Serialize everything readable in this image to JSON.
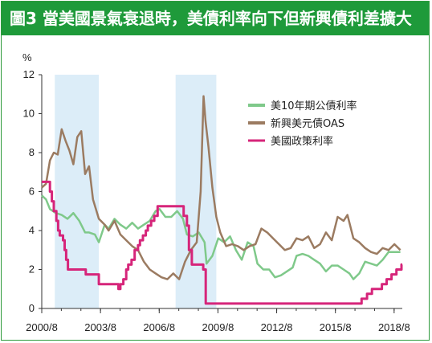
{
  "title": "圖3 當美國景氣衰退時，美債利率向下但新興債利差擴大",
  "chart_data": {
    "type": "line",
    "title": "圖3 當美國景氣衰退時，美債利率向下但新興債利差擴大",
    "ylabel": "%",
    "xlabel": "",
    "ylim": [
      0,
      12
    ],
    "yticks": [
      0,
      2,
      4,
      6,
      8,
      10,
      12
    ],
    "xlim": [
      2000.583,
      2019.0
    ],
    "xtick_labels": [
      "2000/8",
      "2003/8",
      "2006/8",
      "2009/8",
      "2012/8",
      "2015/8",
      "2018/8"
    ],
    "xtick_values": [
      2000.583,
      2003.583,
      2006.583,
      2009.583,
      2012.583,
      2015.583,
      2018.583
    ],
    "grid": false,
    "legend_position": "top-right",
    "recession_shading": [
      [
        2001.25,
        2003.5
      ],
      [
        2007.42,
        2009.5
      ]
    ],
    "series": [
      {
        "name": "美10年期公債利率",
        "color": "#7fc98a",
        "x": [
          2000.583,
          2000.8,
          2001.0,
          2001.3,
          2001.6,
          2001.9,
          2002.2,
          2002.5,
          2002.8,
          2003.0,
          2003.3,
          2003.5,
          2003.8,
          2004.0,
          2004.3,
          2004.6,
          2004.9,
          2005.2,
          2005.5,
          2005.8,
          2006.1,
          2006.4,
          2006.6,
          2006.9,
          2007.2,
          2007.5,
          2007.8,
          2008.0,
          2008.3,
          2008.6,
          2008.9,
          2009.0,
          2009.3,
          2009.6,
          2009.9,
          2010.2,
          2010.5,
          2010.8,
          2011.1,
          2011.4,
          2011.6,
          2011.9,
          2012.2,
          2012.5,
          2012.8,
          2013.1,
          2013.4,
          2013.6,
          2013.9,
          2014.2,
          2014.5,
          2014.8,
          2015.1,
          2015.4,
          2015.7,
          2016.0,
          2016.3,
          2016.5,
          2016.8,
          2017.1,
          2017.4,
          2017.7,
          2018.0,
          2018.3,
          2018.6,
          2018.9
        ],
        "values": [
          5.8,
          5.6,
          5.1,
          4.9,
          4.8,
          4.6,
          4.9,
          4.5,
          3.9,
          3.9,
          3.8,
          3.4,
          4.3,
          4.1,
          4.6,
          4.3,
          4.1,
          4.4,
          4.1,
          4.3,
          4.5,
          5.0,
          5.1,
          4.7,
          4.7,
          5.0,
          4.6,
          3.8,
          3.7,
          3.9,
          3.4,
          2.3,
          2.7,
          3.6,
          3.4,
          3.7,
          3.0,
          2.5,
          3.4,
          3.2,
          2.3,
          2.0,
          2.0,
          1.6,
          1.7,
          1.9,
          2.1,
          2.7,
          2.8,
          2.7,
          2.5,
          2.3,
          1.9,
          2.2,
          2.2,
          2.0,
          1.8,
          1.5,
          1.8,
          2.4,
          2.3,
          2.2,
          2.5,
          2.9,
          2.9,
          2.9
        ]
      },
      {
        "name": "新興美元債OAS",
        "color": "#9b7b61",
        "x": [
          2000.583,
          2000.8,
          2001.0,
          2001.2,
          2001.4,
          2001.6,
          2001.8,
          2002.0,
          2002.2,
          2002.4,
          2002.6,
          2002.8,
          2003.0,
          2003.2,
          2003.5,
          2003.8,
          2004.0,
          2004.3,
          2004.6,
          2004.9,
          2005.2,
          2005.5,
          2005.8,
          2006.1,
          2006.4,
          2006.7,
          2007.0,
          2007.3,
          2007.6,
          2007.9,
          2008.2,
          2008.5,
          2008.7,
          2008.85,
          2008.95,
          2009.1,
          2009.3,
          2009.5,
          2009.7,
          2010.0,
          2010.3,
          2010.6,
          2010.9,
          2011.2,
          2011.5,
          2011.8,
          2012.1,
          2012.4,
          2012.7,
          2013.0,
          2013.3,
          2013.6,
          2013.9,
          2014.2,
          2014.5,
          2014.8,
          2015.1,
          2015.4,
          2015.7,
          2016.0,
          2016.2,
          2016.5,
          2016.8,
          2017.1,
          2017.4,
          2017.7,
          2018.0,
          2018.3,
          2018.6,
          2018.9
        ],
        "values": [
          6.2,
          6.4,
          7.6,
          8.0,
          7.9,
          9.2,
          8.6,
          8.1,
          7.4,
          8.8,
          9.1,
          6.9,
          7.3,
          5.6,
          4.6,
          4.3,
          4.0,
          4.5,
          3.8,
          3.5,
          3.2,
          3.0,
          2.4,
          2.0,
          1.8,
          1.6,
          1.5,
          1.8,
          1.5,
          2.4,
          3.0,
          3.4,
          6.0,
          10.9,
          9.6,
          8.3,
          6.2,
          4.7,
          3.9,
          3.2,
          3.3,
          3.2,
          3.0,
          3.2,
          3.3,
          4.1,
          3.9,
          3.6,
          3.3,
          3.0,
          3.1,
          3.6,
          3.5,
          3.7,
          3.1,
          3.3,
          3.9,
          3.5,
          4.7,
          4.5,
          4.8,
          3.6,
          3.4,
          3.1,
          2.9,
          2.8,
          3.1,
          3.0,
          3.3,
          3.0
        ]
      },
      {
        "name": "美國政策利率",
        "color": "#d6257a",
        "step": true,
        "x": [
          2000.583,
          2001.0,
          2001.1,
          2001.2,
          2001.33,
          2001.42,
          2001.5,
          2001.67,
          2001.75,
          2001.83,
          2001.92,
          2002.83,
          2003.5,
          2004.5,
          2004.6,
          2004.75,
          2004.9,
          2005.0,
          2005.17,
          2005.33,
          2005.5,
          2005.6,
          2005.75,
          2005.9,
          2006.0,
          2006.17,
          2006.33,
          2006.5,
          2007.67,
          2007.83,
          2008.0,
          2008.1,
          2008.25,
          2008.83,
          2008.96,
          2015.9,
          2016.92,
          2017.2,
          2017.45,
          2017.96,
          2018.2,
          2018.45,
          2018.7,
          2018.96
        ],
        "values": [
          6.5,
          6.0,
          5.5,
          5.0,
          4.5,
          4.0,
          3.75,
          3.5,
          3.0,
          2.5,
          2.0,
          1.75,
          1.25,
          1.0,
          1.25,
          1.5,
          2.0,
          2.25,
          2.5,
          3.0,
          3.25,
          3.5,
          3.75,
          4.0,
          4.25,
          4.5,
          4.75,
          5.25,
          5.25,
          4.75,
          4.25,
          3.0,
          2.25,
          2.0,
          0.25,
          0.25,
          0.5,
          0.75,
          1.0,
          1.25,
          1.5,
          1.75,
          2.0,
          2.25
        ]
      }
    ]
  }
}
